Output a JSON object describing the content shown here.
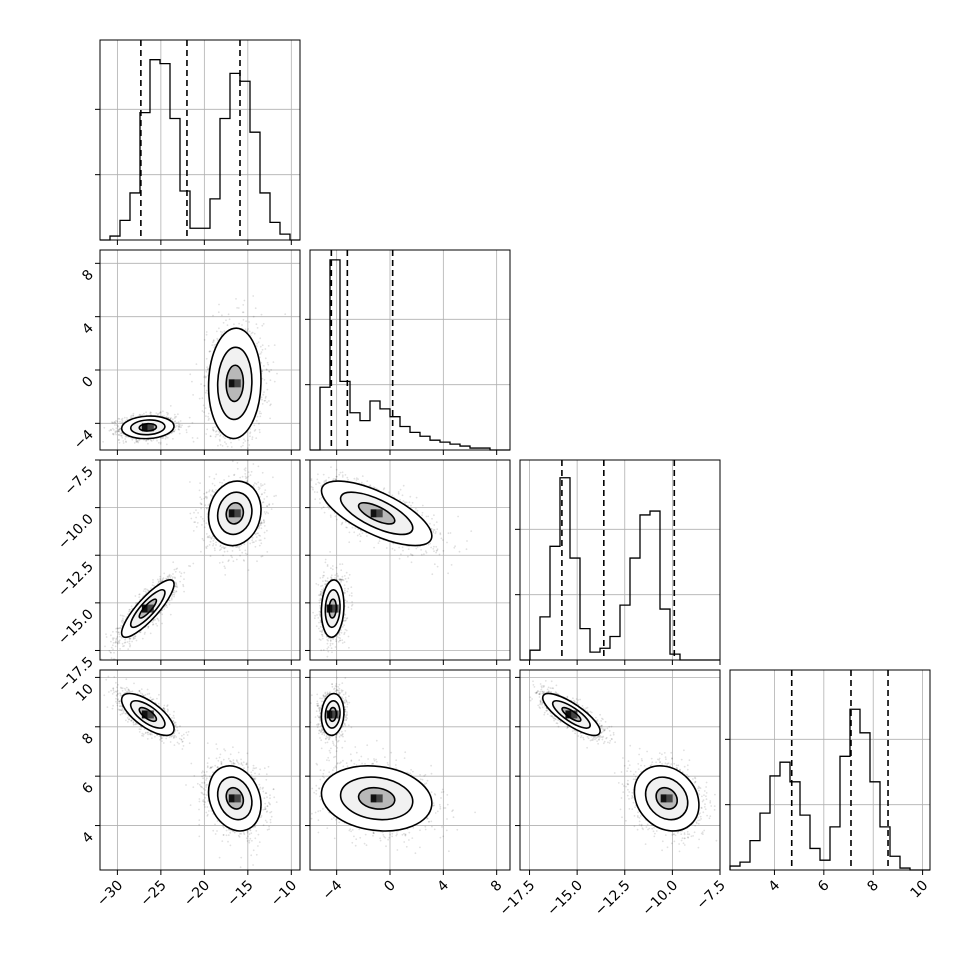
{
  "chart_data": {
    "type": "corner",
    "dimensions": [
      {
        "range": [
          -32,
          -9
        ],
        "ticks": [
          -30,
          -25,
          -20,
          -15,
          -10
        ],
        "tick_labels": [
          "−30",
          "−25",
          "−20",
          "−15",
          "−10"
        ],
        "quantiles": [
          -27.3,
          -22.0,
          -15.9
        ],
        "modes": [
          {
            "mean": -26.5,
            "sd": 1.6,
            "w": 0.5
          },
          {
            "mean": -16.5,
            "sd": 1.6,
            "w": 0.5
          }
        ]
      },
      {
        "range": [
          -6,
          9
        ],
        "ticks": [
          -4,
          0,
          4,
          8
        ],
        "tick_labels": [
          "−4",
          "0",
          "4",
          "8"
        ],
        "quantiles": [
          -4.4,
          -3.2,
          0.2
        ],
        "modes": [
          {
            "mean": -4.3,
            "sd": 0.45,
            "w": 0.5
          },
          {
            "mean": -1.0,
            "sd": 2.2,
            "w": 0.5
          }
        ]
      },
      {
        "range": [
          -18,
          -7.5
        ],
        "ticks": [
          -17.5,
          -15.0,
          -12.5,
          -10.0,
          -7.5
        ],
        "tick_labels": [
          "−17.5",
          "−15.0",
          "−12.5",
          "−10.0",
          "−7.5"
        ],
        "quantiles": [
          -15.8,
          -13.6,
          -9.9
        ],
        "modes": [
          {
            "mean": -15.3,
            "sd": 0.8,
            "w": 0.5
          },
          {
            "mean": -10.3,
            "sd": 0.9,
            "w": 0.5
          }
        ]
      },
      {
        "range": [
          2.2,
          10.3
        ],
        "ticks": [
          4,
          6,
          8,
          10
        ],
        "tick_labels": [
          "4",
          "6",
          "8",
          "10"
        ],
        "quantiles": [
          4.7,
          7.1,
          8.6
        ],
        "modes": [
          {
            "mean": 5.1,
            "sd": 0.7,
            "w": 0.5
          },
          {
            "mean": 8.5,
            "sd": 0.45,
            "w": 0.5
          }
        ]
      }
    ],
    "histograms": [
      {
        "dim": 0,
        "bins": 20,
        "values": [
          0.0,
          0.02,
          0.1,
          0.24,
          0.65,
          0.92,
          0.9,
          0.62,
          0.25,
          0.06,
          0.06,
          0.21,
          0.62,
          0.85,
          0.81,
          0.55,
          0.24,
          0.09,
          0.03,
          0.0
        ]
      },
      {
        "dim": 1,
        "bins": 20,
        "values": [
          0.0,
          0.32,
          0.97,
          0.35,
          0.19,
          0.15,
          0.25,
          0.21,
          0.17,
          0.12,
          0.09,
          0.07,
          0.05,
          0.04,
          0.03,
          0.02,
          0.01,
          0.01,
          0.0,
          0.0
        ]
      },
      {
        "dim": 2,
        "bins": 20,
        "values": [
          0.0,
          0.05,
          0.22,
          0.58,
          0.93,
          0.52,
          0.16,
          0.04,
          0.06,
          0.12,
          0.28,
          0.52,
          0.74,
          0.76,
          0.26,
          0.03,
          0.0,
          0.0,
          0.0,
          0.0
        ]
      },
      {
        "dim": 3,
        "bins": 20,
        "values": [
          0.02,
          0.04,
          0.15,
          0.29,
          0.48,
          0.55,
          0.45,
          0.28,
          0.11,
          0.05,
          0.22,
          0.58,
          0.82,
          0.7,
          0.45,
          0.22,
          0.07,
          0.01,
          0.0,
          0.0
        ]
      }
    ],
    "panels_2d": [
      {
        "x_dim": 0,
        "y_dim": 1,
        "clusters": [
          {
            "mx": -26.5,
            "my": -4.3,
            "sx": 1.6,
            "sy": 0.45,
            "r": 0.1
          },
          {
            "mx": -16.5,
            "my": -1.0,
            "sx": 1.6,
            "sy": 2.2,
            "r": 0.05
          }
        ]
      },
      {
        "x_dim": 0,
        "y_dim": 2,
        "clusters": [
          {
            "mx": -26.5,
            "my": -15.3,
            "sx": 1.6,
            "sy": 0.8,
            "r": 0.85
          },
          {
            "mx": -16.5,
            "my": -10.3,
            "sx": 1.6,
            "sy": 0.9,
            "r": 0.1
          }
        ]
      },
      {
        "x_dim": 1,
        "y_dim": 2,
        "clusters": [
          {
            "mx": -4.3,
            "my": -15.3,
            "sx": 0.45,
            "sy": 0.8,
            "r": 0.1
          },
          {
            "mx": -1.0,
            "my": -10.3,
            "sx": 2.2,
            "sy": 0.9,
            "r": -0.7
          }
        ]
      },
      {
        "x_dim": 0,
        "y_dim": 3,
        "clusters": [
          {
            "mx": -26.5,
            "my": 8.5,
            "sx": 1.6,
            "sy": 0.45,
            "r": -0.7
          },
          {
            "mx": -16.5,
            "my": 5.1,
            "sx": 1.6,
            "sy": 0.7,
            "r": -0.2
          }
        ]
      },
      {
        "x_dim": 1,
        "y_dim": 3,
        "clusters": [
          {
            "mx": -4.3,
            "my": 8.5,
            "sx": 0.45,
            "sy": 0.45,
            "r": 0.1
          },
          {
            "mx": -1.0,
            "my": 5.1,
            "sx": 2.2,
            "sy": 0.7,
            "r": -0.15
          }
        ]
      },
      {
        "x_dim": 2,
        "y_dim": 3,
        "clusters": [
          {
            "mx": -15.3,
            "my": 8.5,
            "sx": 0.8,
            "sy": 0.45,
            "r": -0.8
          },
          {
            "mx": -10.3,
            "my": 5.1,
            "sx": 0.9,
            "sy": 0.7,
            "r": -0.2
          }
        ]
      }
    ],
    "contour_levels": [
      0.39,
      0.86,
      0.99
    ],
    "grid": true,
    "title": "",
    "xlabel": "",
    "ylabel": ""
  }
}
